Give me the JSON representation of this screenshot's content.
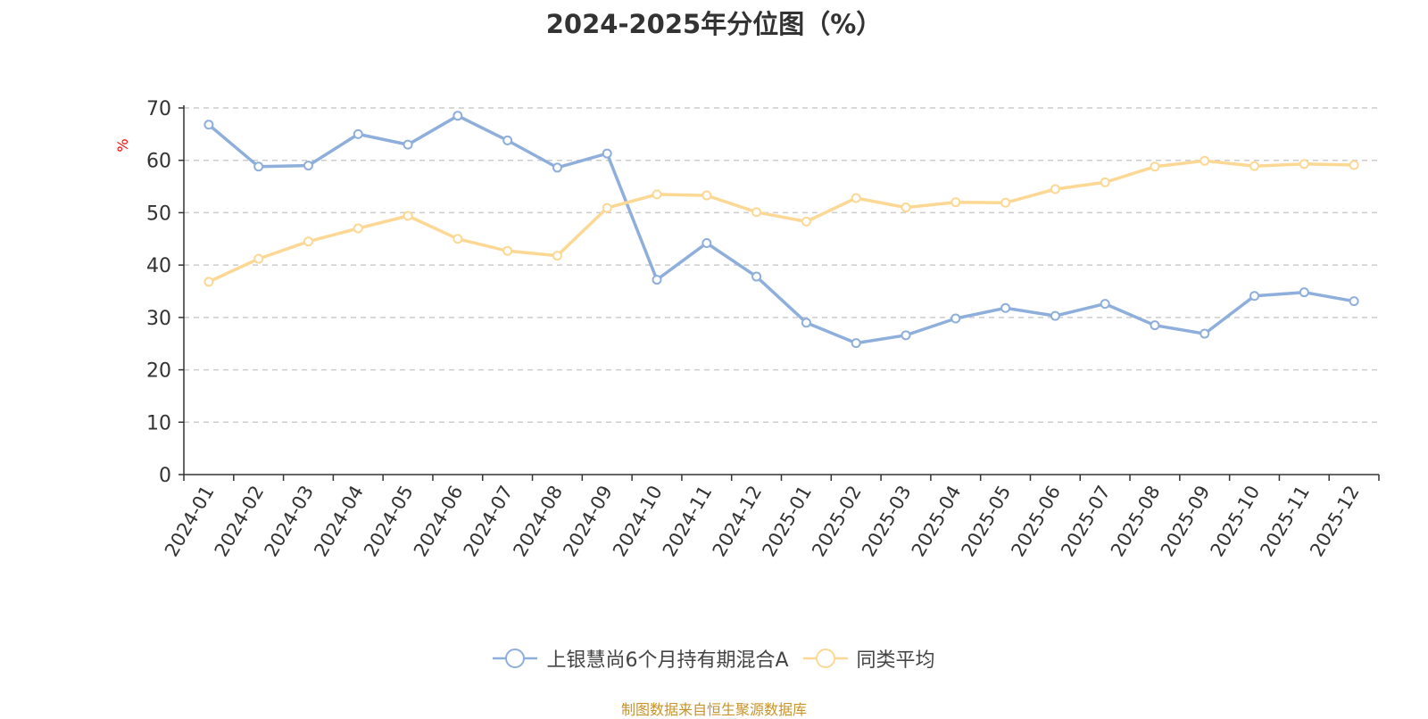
{
  "chart_data": {
    "type": "line",
    "title": "2024-2025年分位图（%）",
    "ylabel": "%",
    "xlabel": "",
    "ylim": [
      0,
      70
    ],
    "yticks": [
      0,
      10,
      20,
      30,
      40,
      50,
      60,
      70
    ],
    "grid": true,
    "legend_position": "bottom",
    "categories": [
      "2024-01",
      "2024-02",
      "2024-03",
      "2024-04",
      "2024-05",
      "2024-06",
      "2024-07",
      "2024-08",
      "2024-09",
      "2024-10",
      "2024-11",
      "2024-12",
      "2025-01",
      "2025-02",
      "2025-03",
      "2025-04",
      "2025-05",
      "2025-06",
      "2025-07",
      "2025-08",
      "2025-09",
      "2025-10",
      "2025-11",
      "2025-12"
    ],
    "series": [
      {
        "name": "上银慧尚6个月持有期混合A",
        "color": "#8eaedb",
        "values": [
          66.8,
          58.8,
          59.0,
          65.0,
          63.0,
          68.5,
          63.8,
          58.6,
          61.3,
          37.2,
          44.2,
          37.8,
          29.0,
          25.1,
          26.6,
          29.8,
          31.8,
          30.3,
          32.6,
          28.5,
          26.9,
          34.1,
          34.8,
          33.1
        ]
      },
      {
        "name": "同类平均",
        "color": "#fcd894",
        "values": [
          36.8,
          41.2,
          44.5,
          47.0,
          49.4,
          45.0,
          42.7,
          41.8,
          50.9,
          53.5,
          53.3,
          50.1,
          48.3,
          52.8,
          51.0,
          52.0,
          51.9,
          54.5,
          55.8,
          58.8,
          59.9,
          58.9,
          59.3,
          59.1
        ]
      }
    ]
  },
  "source_note": "制图数据来自恒生聚源数据库"
}
